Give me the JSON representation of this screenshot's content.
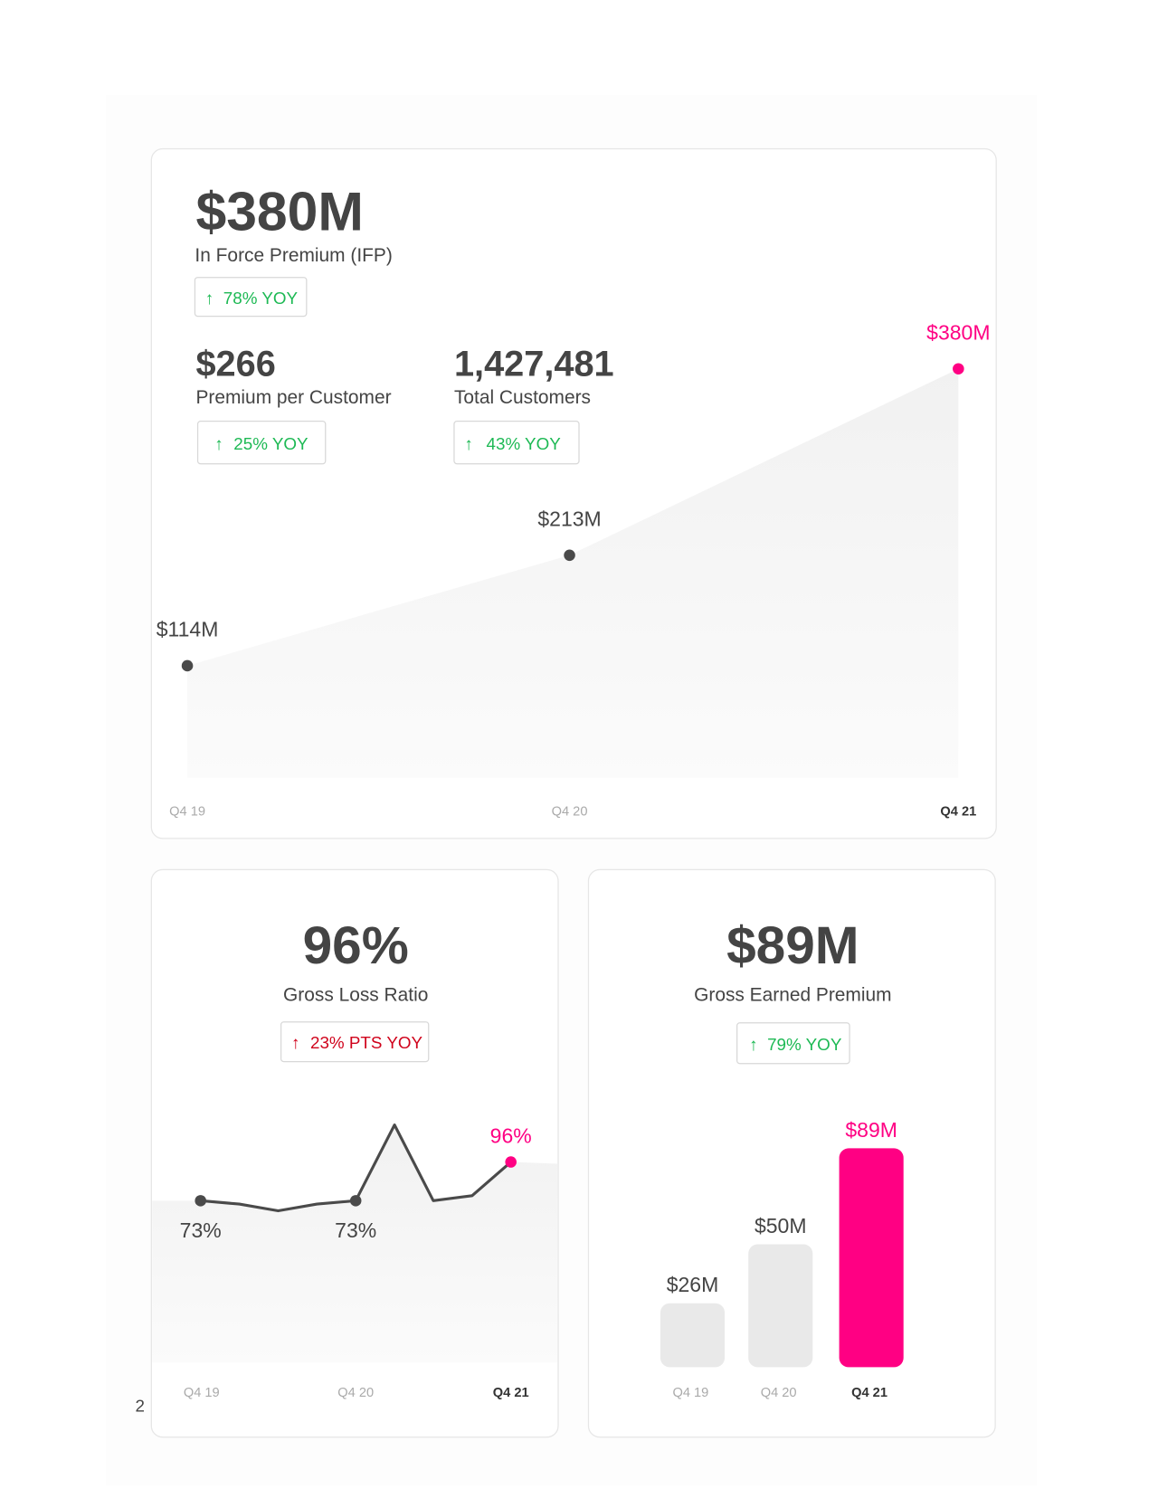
{
  "page_number": "2",
  "chart_data": [
    {
      "type": "area",
      "headline": "$380M",
      "subtitle": "In Force Premium (IFP)",
      "yoy": "78% YOY",
      "metrics": [
        {
          "value": "$266",
          "label": "Premium per Customer",
          "yoy": "25% YOY"
        },
        {
          "value": "1,427,481",
          "label": "Total Customers",
          "yoy": "43% YOY"
        }
      ],
      "categories": [
        "Q4 19",
        "Q4 20",
        "Q4 21"
      ],
      "values": [
        114,
        213,
        380
      ],
      "value_labels": [
        "$114M",
        "$213M",
        "$380M"
      ],
      "color": "#4a4a4a",
      "highlight_color": "#ff0083"
    },
    {
      "type": "line",
      "headline": "96%",
      "subtitle": "Gross Loss Ratio",
      "yoy": "23% PTS YOY",
      "categories": [
        "Q4 19",
        null,
        null,
        null,
        "Q4 20",
        null,
        null,
        null,
        "Q4 21"
      ],
      "values": [
        73,
        71,
        67,
        71,
        73,
        118,
        73,
        76,
        96
      ],
      "value_labels": [
        "73%",
        null,
        null,
        null,
        "73%",
        null,
        null,
        null,
        "96%"
      ],
      "color": "#4a4a4a",
      "highlight_color": "#ff0083"
    },
    {
      "type": "bar",
      "headline": "$89M",
      "subtitle": "Gross Earned Premium",
      "yoy": "79% YOY",
      "categories": [
        "Q4 19",
        "Q4 20",
        "Q4 21"
      ],
      "values": [
        26,
        50,
        89
      ],
      "value_labels": [
        "$26M",
        "$50M",
        "$89M"
      ],
      "color": "#e9e9e9",
      "highlight_color": "#ff0083"
    }
  ]
}
